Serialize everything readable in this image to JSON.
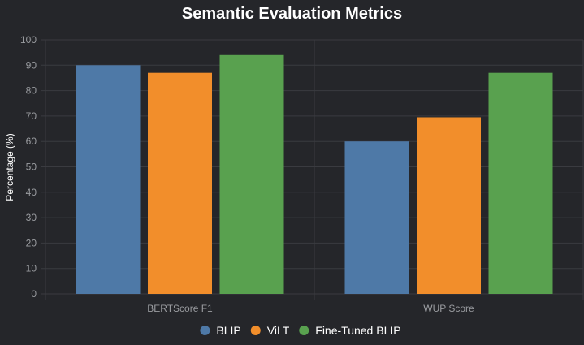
{
  "chart_data": {
    "type": "bar",
    "title": "Semantic Evaluation Metrics",
    "xlabel": "",
    "ylabel": "Percentage (%)",
    "ylim": [
      0,
      100
    ],
    "yticks": [
      0,
      10,
      20,
      30,
      40,
      50,
      60,
      70,
      80,
      90,
      100
    ],
    "categories": [
      "BERTScore F1",
      "WUP Score"
    ],
    "series": [
      {
        "name": "BLIP",
        "values": [
          90,
          60
        ],
        "color": "#4e79a7"
      },
      {
        "name": "ViLT",
        "values": [
          87,
          69.5
        ],
        "color": "#f28e2b"
      },
      {
        "name": "Fine-Tuned BLIP",
        "values": [
          94,
          87
        ],
        "color": "#59a14f"
      }
    ],
    "grid": true,
    "legend": "bottom-center"
  }
}
